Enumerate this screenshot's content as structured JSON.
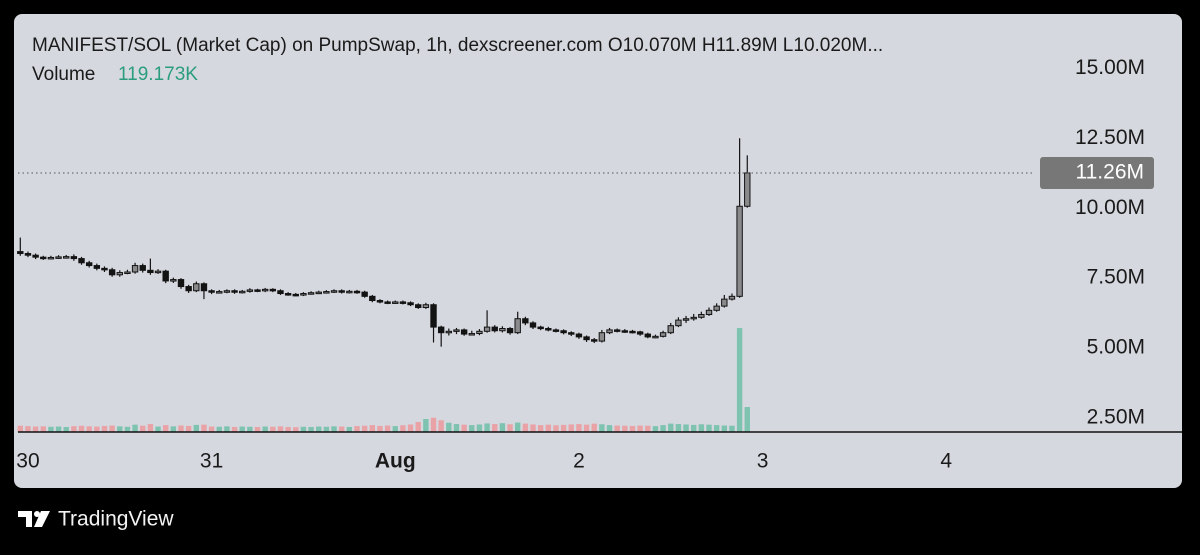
{
  "chart_data": {
    "type": "candlestick",
    "title": "MANIFEST/SOL (Market Cap) on PumpSwap, 1h, dexscreener.com  O10.070M  H11.89M  L10.020M...",
    "volume_title": "Volume",
    "volume_readout": "119.173K",
    "brand": "TradingView",
    "x": [
      -1,
      0,
      1,
      2,
      3,
      4,
      5,
      6,
      7,
      8,
      9,
      10,
      11,
      12,
      13,
      14,
      15,
      16,
      17,
      18,
      19,
      20,
      21,
      22,
      23,
      24,
      25,
      26,
      27,
      28,
      29,
      30,
      31,
      32,
      33,
      34,
      35,
      36,
      37,
      38,
      39,
      40,
      41,
      42,
      43,
      44,
      45,
      46,
      47,
      48,
      49,
      50,
      51,
      52,
      53,
      54,
      55,
      56,
      57,
      58,
      59,
      60,
      61,
      62,
      63,
      64,
      65,
      66,
      67,
      68,
      69,
      70,
      71,
      72,
      73,
      74,
      75,
      76,
      77,
      78,
      79,
      80,
      81,
      82,
      83,
      84,
      85,
      86,
      87,
      88,
      89,
      90,
      91,
      92,
      93,
      94
    ],
    "open": [
      8.45,
      8.38,
      8.32,
      8.25,
      8.22,
      8.24,
      8.26,
      8.27,
      8.2,
      8.05,
      7.95,
      7.85,
      7.8,
      7.62,
      7.7,
      7.72,
      7.95,
      7.78,
      7.7,
      7.75,
      7.4,
      7.45,
      7.2,
      7.05,
      7.3,
      7.05,
      7.0,
      7.02,
      7.05,
      7.0,
      7.03,
      7.08,
      7.05,
      7.1,
      7.05,
      6.95,
      6.92,
      6.9,
      6.95,
      6.98,
      7.0,
      7.02,
      7.05,
      7.0,
      7.03,
      7.0,
      6.85,
      6.7,
      6.65,
      6.62,
      6.65,
      6.62,
      6.55,
      6.45,
      6.55,
      5.75,
      5.55,
      5.6,
      5.65,
      5.5,
      5.52,
      5.6,
      5.75,
      5.62,
      5.7,
      5.55,
      6.05,
      5.9,
      5.75,
      5.7,
      5.65,
      5.62,
      5.55,
      5.5,
      5.4,
      5.3,
      5.25,
      5.55,
      5.65,
      5.62,
      5.6,
      5.58,
      5.5,
      5.4,
      5.42,
      5.55,
      5.8,
      6.0,
      6.05,
      6.1,
      6.2,
      6.35,
      6.5,
      6.75,
      6.85,
      10.07
    ],
    "high": [
      8.95,
      8.45,
      8.38,
      8.3,
      8.3,
      8.32,
      8.33,
      8.35,
      8.26,
      8.12,
      8.02,
      7.92,
      7.87,
      7.78,
      7.8,
      8.05,
      8.02,
      8.2,
      7.82,
      7.8,
      7.52,
      7.5,
      7.26,
      7.38,
      7.35,
      7.1,
      7.08,
      7.1,
      7.1,
      7.08,
      7.14,
      7.12,
      7.15,
      7.14,
      7.1,
      7.0,
      6.97,
      7.0,
      7.03,
      7.05,
      7.07,
      7.1,
      7.1,
      7.08,
      7.08,
      7.05,
      6.9,
      6.75,
      6.7,
      6.7,
      6.7,
      6.67,
      6.6,
      6.62,
      6.6,
      5.8,
      5.7,
      5.72,
      5.7,
      5.62,
      5.68,
      6.35,
      5.82,
      5.78,
      5.75,
      6.3,
      6.12,
      5.96,
      5.8,
      5.76,
      5.7,
      5.67,
      5.6,
      5.55,
      5.45,
      5.36,
      5.65,
      5.72,
      5.7,
      5.68,
      5.65,
      5.62,
      5.55,
      5.48,
      5.62,
      5.9,
      6.1,
      6.15,
      6.22,
      6.3,
      6.45,
      6.6,
      6.9,
      6.95,
      12.5,
      11.89
    ],
    "low": [
      8.3,
      8.25,
      8.18,
      8.15,
      8.17,
      8.19,
      8.2,
      8.12,
      7.98,
      7.88,
      7.78,
      7.72,
      7.55,
      7.55,
      7.64,
      7.66,
      7.7,
      7.62,
      7.65,
      7.32,
      7.33,
      7.12,
      6.97,
      7.0,
      6.75,
      6.93,
      6.95,
      6.96,
      6.94,
      6.95,
      6.98,
      7.0,
      7.0,
      7.0,
      6.9,
      6.87,
      6.85,
      6.86,
      6.91,
      6.93,
      6.95,
      6.97,
      6.95,
      6.95,
      6.94,
      6.8,
      6.64,
      6.6,
      6.57,
      6.58,
      6.56,
      6.5,
      6.4,
      6.4,
      5.2,
      5.05,
      5.45,
      5.5,
      5.44,
      5.45,
      5.46,
      5.55,
      5.56,
      5.56,
      5.48,
      5.5,
      5.82,
      5.68,
      5.64,
      5.6,
      5.56,
      5.49,
      5.43,
      5.33,
      5.22,
      5.18,
      5.2,
      5.5,
      5.56,
      5.54,
      5.52,
      5.44,
      5.35,
      5.35,
      5.38,
      5.5,
      5.75,
      5.9,
      5.98,
      6.05,
      6.15,
      6.3,
      6.45,
      6.7,
      6.8,
      10.02
    ],
    "close": [
      8.38,
      8.32,
      8.25,
      8.22,
      8.24,
      8.26,
      8.27,
      8.2,
      8.05,
      7.95,
      7.85,
      7.8,
      7.62,
      7.7,
      7.72,
      7.95,
      7.78,
      7.7,
      7.75,
      7.4,
      7.45,
      7.2,
      7.05,
      7.3,
      7.05,
      7.0,
      7.02,
      7.05,
      7.0,
      7.03,
      7.08,
      7.05,
      7.1,
      7.05,
      6.95,
      6.92,
      6.9,
      6.95,
      6.98,
      7.0,
      7.02,
      7.05,
      7.0,
      7.03,
      7.0,
      6.85,
      6.7,
      6.65,
      6.62,
      6.65,
      6.62,
      6.55,
      6.45,
      6.55,
      5.75,
      5.55,
      5.6,
      5.65,
      5.5,
      5.52,
      5.6,
      5.75,
      5.62,
      5.7,
      5.55,
      6.05,
      5.9,
      5.75,
      5.7,
      5.65,
      5.62,
      5.55,
      5.5,
      5.4,
      5.3,
      5.25,
      5.55,
      5.65,
      5.62,
      5.6,
      5.58,
      5.5,
      5.4,
      5.42,
      5.55,
      5.8,
      6.0,
      6.05,
      6.1,
      6.2,
      6.35,
      6.5,
      6.75,
      6.85,
      10.07,
      11.26
    ],
    "volume": [
      30,
      28,
      26,
      27,
      25,
      26,
      24,
      28,
      30,
      27,
      26,
      29,
      31,
      27,
      25,
      35,
      30,
      38,
      26,
      33,
      27,
      31,
      29,
      34,
      35,
      26,
      25,
      27,
      24,
      26,
      25,
      24,
      26,
      25,
      27,
      24,
      23,
      25,
      24,
      26,
      25,
      27,
      26,
      24,
      28,
      30,
      33,
      29,
      31,
      28,
      32,
      36,
      48,
      62,
      68,
      56,
      44,
      38,
      35,
      33,
      36,
      41,
      38,
      42,
      37,
      45,
      40,
      36,
      33,
      35,
      32,
      34,
      36,
      38,
      35,
      40,
      37,
      33,
      31,
      30,
      29,
      31,
      30,
      28,
      33,
      40,
      38,
      36,
      34,
      37,
      35,
      33,
      31,
      30,
      496,
      119.173
    ],
    "up_color": "#8a8a8c",
    "down_color": "#131313",
    "volume_up_color": "#7ec3b0",
    "volume_down_color": "#e9a3a6",
    "readout_color": "#2a9d7f",
    "xlim": [
      -1.3,
      131.6
    ],
    "ylim": [
      2.0,
      16.8
    ],
    "volume_lim": [
      0,
      1975
    ],
    "xticks": [
      {
        "value": 0,
        "label": "30"
      },
      {
        "value": 24,
        "label": "31"
      },
      {
        "value": 48,
        "label": "Aug"
      },
      {
        "value": 72,
        "label": "2"
      },
      {
        "value": 96,
        "label": "3"
      },
      {
        "value": 120,
        "label": "4"
      }
    ],
    "yticks": [
      {
        "value": 2.5,
        "label": "2.50M"
      },
      {
        "value": 5.0,
        "label": "5.00M"
      },
      {
        "value": 7.5,
        "label": "7.50M"
      },
      {
        "value": 10.0,
        "label": "10.00M"
      },
      {
        "value": 12.5,
        "label": "12.50M"
      },
      {
        "value": 15.0,
        "label": "15.00M"
      }
    ],
    "last_price": {
      "value": 11.26,
      "label": "11.26M"
    }
  }
}
